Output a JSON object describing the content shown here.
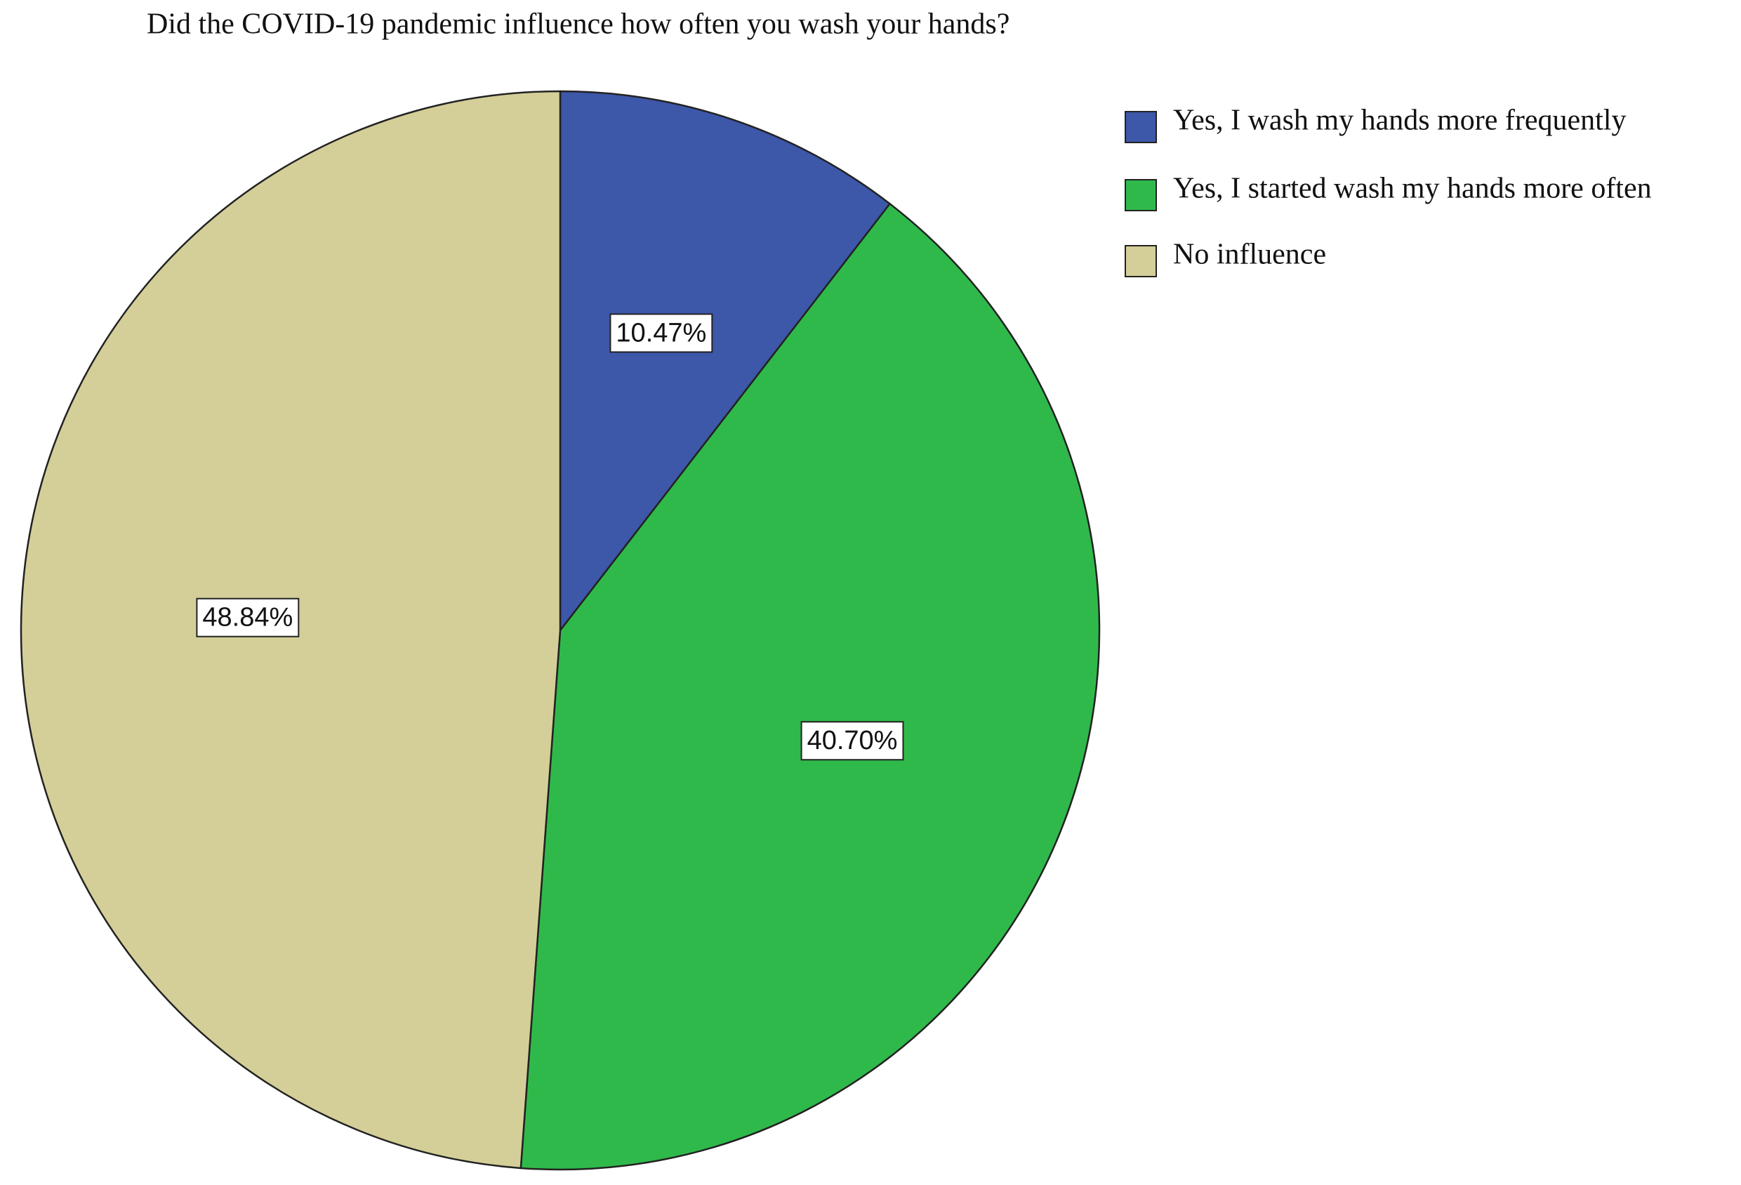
{
  "chart_data": {
    "type": "pie",
    "title": "Did the COVID-19 pandemic influence how often you wash your hands?",
    "categories": [
      "Yes, I wash my hands more frequently",
      "Yes, I started wash my hands more often",
      "No influence"
    ],
    "values": [
      10.47,
      40.7,
      48.84
    ],
    "value_labels": [
      "10.47%",
      "40.70%",
      "48.84%"
    ],
    "colors": [
      "#3d57a9",
      "#30b94b",
      "#d4cf98"
    ]
  }
}
